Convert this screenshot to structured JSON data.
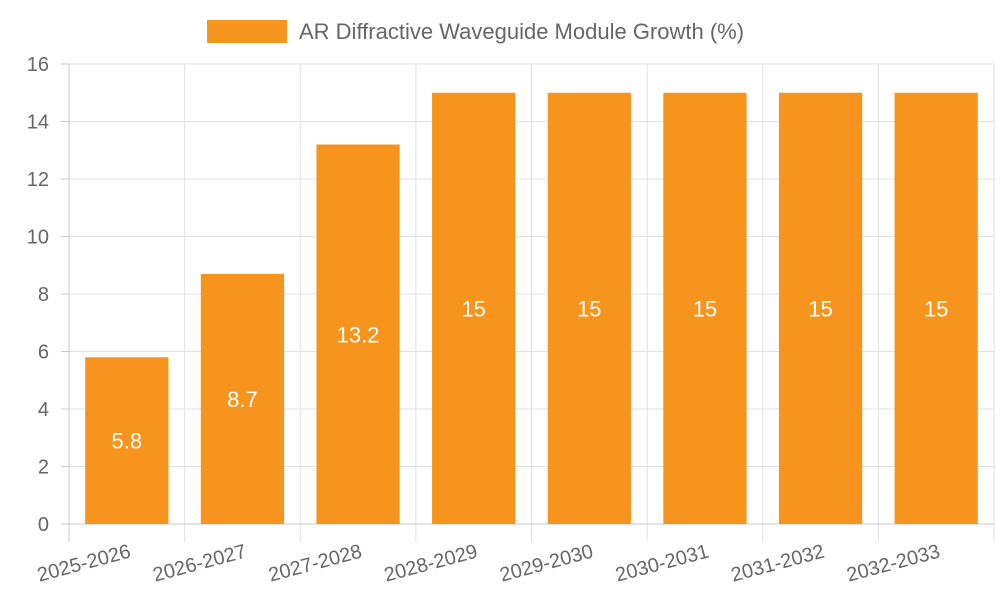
{
  "chart_data": {
    "type": "bar",
    "categories": [
      "2025-2026",
      "2026-2027",
      "2027-2028",
      "2028-2029",
      "2029-2030",
      "2030-2031",
      "2031-2032",
      "2032-2033"
    ],
    "series": [
      {
        "name": "AR Diffractive Waveguide Module Growth (%)",
        "values": [
          5.8,
          8.7,
          13.2,
          15,
          15,
          15,
          15,
          15
        ],
        "color": "#f7941d"
      }
    ],
    "data_labels": [
      "5.8",
      "8.7",
      "13.2",
      "15",
      "15",
      "15",
      "15",
      "15"
    ],
    "title": "",
    "xlabel": "",
    "ylabel": "",
    "ylim": [
      0,
      16
    ],
    "yticks": [
      0,
      2,
      4,
      6,
      8,
      10,
      12,
      14,
      16
    ],
    "grid": true,
    "legend_position": "top-center",
    "colors": {
      "bar": "#f7941d",
      "grid": "#e0e0e0",
      "axis": "#c8c8c8",
      "tick_text": "#666666",
      "data_label_text": "#ffffff"
    }
  }
}
